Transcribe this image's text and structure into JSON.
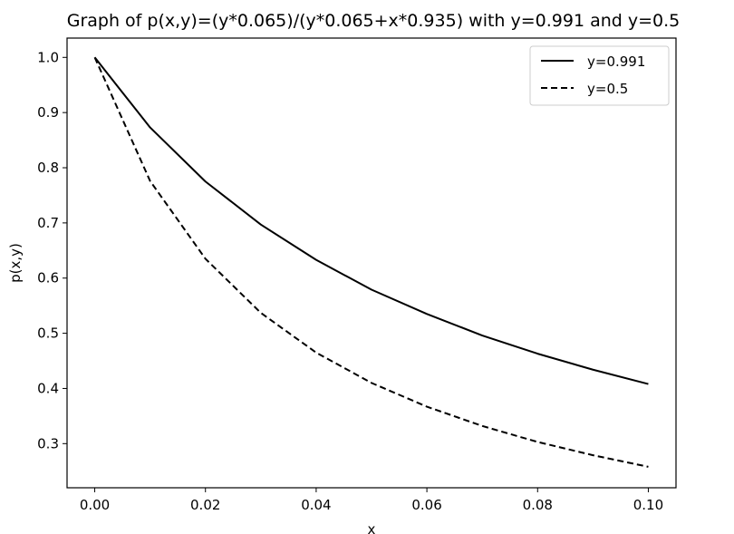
{
  "chart_data": {
    "type": "line",
    "title": "Graph of p(x,y)=(y*0.065)/(y*0.065+x*0.935) with y=0.991 and y=0.5",
    "xlabel": "x",
    "ylabel": "p(x,y)",
    "xlim": [
      -0.005,
      0.105
    ],
    "ylim": [
      0.22,
      1.035
    ],
    "xticks": [
      "0.00",
      "0.02",
      "0.04",
      "0.06",
      "0.08",
      "0.10"
    ],
    "yticks": [
      "0.3",
      "0.4",
      "0.5",
      "0.6",
      "0.7",
      "0.8",
      "0.9",
      "1.0"
    ],
    "x": [
      0.0,
      0.01,
      0.02,
      0.03,
      0.04,
      0.05,
      0.06,
      0.07,
      0.08,
      0.09,
      0.1
    ],
    "series": [
      {
        "name": "y=0.991",
        "style": "solid",
        "color": "#000000",
        "values": [
          1.0,
          0.873,
          0.775,
          0.697,
          0.633,
          0.579,
          0.535,
          0.496,
          0.463,
          0.434,
          0.408
        ]
      },
      {
        "name": "y=0.5",
        "style": "dashed",
        "color": "#000000",
        "values": [
          1.0,
          0.776,
          0.635,
          0.537,
          0.465,
          0.41,
          0.367,
          0.332,
          0.303,
          0.279,
          0.258
        ]
      }
    ],
    "grid": false,
    "legend": "top-right"
  }
}
